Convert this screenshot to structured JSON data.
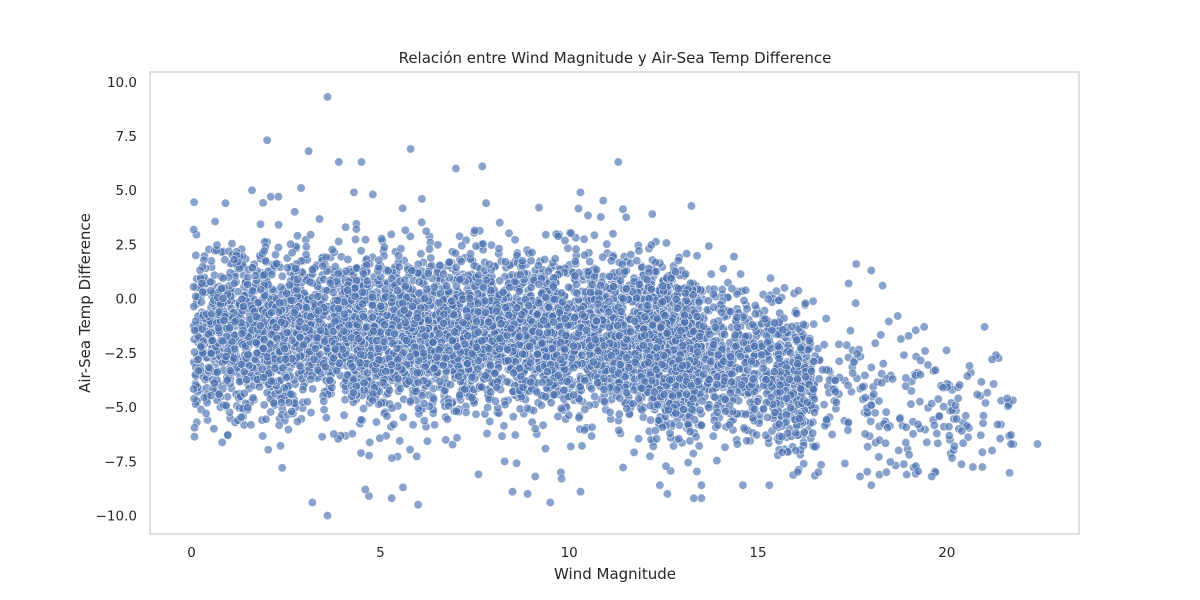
{
  "chart_data": {
    "type": "scatter",
    "title": "Relación entre Wind Magnitude y Air-Sea Temp Difference",
    "xlabel": "Wind Magnitude",
    "ylabel": "Air-Sea Temp Difference",
    "xlim": [
      -1.1,
      23.5
    ],
    "ylim": [
      -10.85,
      10.45
    ],
    "xticks": [
      0,
      5,
      10,
      15,
      20
    ],
    "xtick_labels": [
      "0",
      "5",
      "10",
      "15",
      "20"
    ],
    "yticks": [
      10.0,
      7.5,
      5.0,
      2.5,
      0.0,
      -2.5,
      -5.0,
      -7.5,
      -10.0
    ],
    "ytick_labels": [
      "10.0",
      "7.5",
      "5.0",
      "2.5",
      "0.0",
      "−2.5",
      "−5.0",
      "−7.5",
      "−10.0"
    ],
    "grid": false,
    "color": "#4c72b0",
    "series": [
      {
        "outliers": [
          [
            3.6,
            9.3
          ],
          [
            2.0,
            7.3
          ],
          [
            3.1,
            6.8
          ],
          [
            5.8,
            6.9
          ],
          [
            7.0,
            6.0
          ],
          [
            7.7,
            6.1
          ],
          [
            11.3,
            6.3
          ],
          [
            3.9,
            6.3
          ],
          [
            4.5,
            6.3
          ],
          [
            10.3,
            4.9
          ],
          [
            12.2,
            3.9
          ],
          [
            2.9,
            5.1
          ],
          [
            1.6,
            5.0
          ],
          [
            4.3,
            4.9
          ],
          [
            4.8,
            4.8
          ],
          [
            2.1,
            4.7
          ],
          [
            2.3,
            4.7
          ],
          [
            6.1,
            4.6
          ],
          [
            0.9,
            4.4
          ],
          [
            7.8,
            4.4
          ],
          [
            9.2,
            4.2
          ],
          [
            17.6,
            1.6
          ],
          [
            17.4,
            0.7
          ],
          [
            18.0,
            1.3
          ],
          [
            18.3,
            0.6
          ],
          [
            18.7,
            -0.8
          ],
          [
            19.4,
            -1.3
          ],
          [
            21.0,
            -1.3
          ],
          [
            21.3,
            -2.6
          ],
          [
            21.2,
            -2.8
          ],
          [
            20.6,
            -3.1
          ],
          [
            21.6,
            -4.6
          ],
          [
            22.4,
            -6.7
          ],
          [
            21.7,
            -6.7
          ],
          [
            21.2,
            -7.0
          ],
          [
            20.9,
            -6.3
          ],
          [
            20.4,
            -6.1
          ],
          [
            20.5,
            -5.4
          ],
          [
            19.9,
            -4.1
          ],
          [
            20.3,
            -4.6
          ],
          [
            19.7,
            -3.3
          ],
          [
            19.3,
            -3.5
          ],
          [
            19.7,
            -8.0
          ],
          [
            19.6,
            -8.2
          ],
          [
            18.0,
            -8.6
          ],
          [
            18.4,
            -8.0
          ],
          [
            17.7,
            -8.2
          ],
          [
            17.3,
            -7.6
          ],
          [
            16.0,
            -7.0
          ],
          [
            15.3,
            -8.6
          ],
          [
            14.6,
            -8.6
          ],
          [
            13.5,
            -9.2
          ],
          [
            13.3,
            -9.2
          ],
          [
            12.4,
            -8.6
          ],
          [
            12.6,
            -9.0
          ],
          [
            10.3,
            -8.9
          ],
          [
            9.8,
            -8.3
          ],
          [
            9.1,
            -8.2
          ],
          [
            8.9,
            -9.0
          ],
          [
            8.5,
            -8.9
          ],
          [
            9.5,
            -9.4
          ],
          [
            6.0,
            -9.5
          ],
          [
            5.6,
            -8.7
          ],
          [
            5.3,
            -9.2
          ],
          [
            4.7,
            -9.1
          ],
          [
            4.6,
            -8.8
          ],
          [
            3.2,
            -9.4
          ],
          [
            3.6,
            -10.0
          ],
          [
            2.4,
            -7.8
          ],
          [
            7.6,
            -8.1
          ],
          [
            13.5,
            -8.6
          ],
          [
            16.6,
            -8.0
          ],
          [
            19.0,
            -7.2
          ],
          [
            20.2,
            -6.8
          ]
        ]
      }
    ]
  }
}
